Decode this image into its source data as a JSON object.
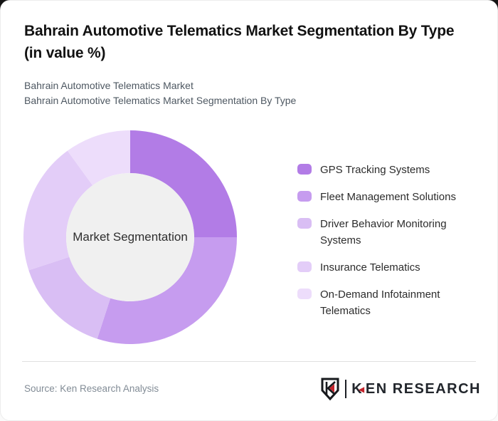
{
  "header": {
    "title": "Bahrain Automotive Telematics Market Segmentation By Type (in value %)",
    "subtitle1": "Bahrain Automotive Telematics Market",
    "subtitle2": "Bahrain Automotive Telematics Market Segmentation By Type"
  },
  "chart_data": {
    "type": "pie",
    "donut": true,
    "title": "Bahrain Automotive Telematics Market Segmentation By Type (in value %)",
    "center_label": "Market Segmentation",
    "start_angle": "top",
    "direction": "clockwise",
    "inner_radius_ratio": 0.6,
    "inner_circle_color": "#f0f0f0",
    "legend_position": "right",
    "values_shown_on_chart": false,
    "segments": [
      {
        "label": "GPS Tracking Systems",
        "value": 25,
        "color": "#b27ce6"
      },
      {
        "label": "Fleet Management Solutions",
        "value": 30,
        "color": "#c69cef"
      },
      {
        "label": "Driver Behavior Monitoring Systems",
        "value": 15,
        "color": "#d9bef4"
      },
      {
        "label": "Insurance Telematics",
        "value": 20,
        "color": "#e3cdf8"
      },
      {
        "label": "On-Demand Infotainment Telematics",
        "value": 10,
        "color": "#edddfb"
      }
    ]
  },
  "footer": {
    "source": "Source: Ken Research Analysis",
    "logo": {
      "first_letter": "K",
      "triangle": "◀",
      "rest": "EN RESEARCH",
      "accent_color": "#c4232b",
      "text_color": "#22262c"
    }
  }
}
